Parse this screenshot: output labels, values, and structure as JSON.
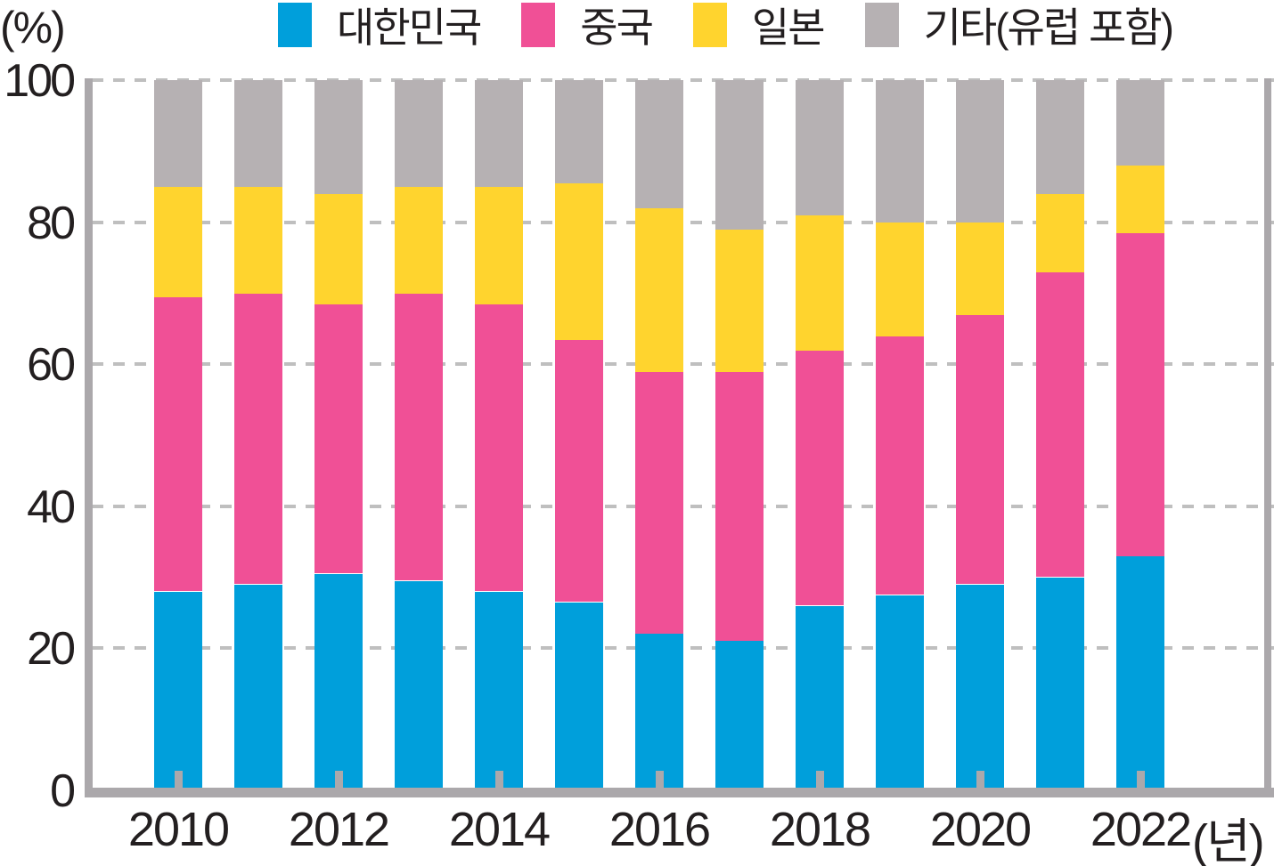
{
  "chart": {
    "y_unit": "(%)",
    "x_unit": "(년)"
  },
  "chart_data": {
    "type": "bar",
    "subtype": "stacked-percent",
    "title": "",
    "xlabel": "(년)",
    "ylabel": "(%)",
    "ylim": [
      0,
      100
    ],
    "yticks": [
      0,
      20,
      40,
      60,
      80,
      100
    ],
    "grid": "dashed-horizontal",
    "legend_position": "top",
    "categories": [
      2010,
      2011,
      2012,
      2013,
      2014,
      2015,
      2016,
      2017,
      2018,
      2019,
      2020,
      2021,
      2022
    ],
    "x_axis_labeled_ticks": [
      2010,
      2012,
      2014,
      2016,
      2018,
      2020,
      2022
    ],
    "series": [
      {
        "key": "korea",
        "name": "대한민국",
        "color": "#009fdb",
        "values": [
          28,
          29,
          30.5,
          29.5,
          28,
          26.5,
          22,
          21,
          26,
          27.5,
          29,
          30,
          33
        ]
      },
      {
        "key": "china",
        "name": "중국",
        "color": "#f05096",
        "values": [
          41.5,
          41,
          38,
          40.5,
          40.5,
          37,
          37,
          38,
          36,
          36.5,
          38,
          43,
          45.5
        ]
      },
      {
        "key": "japan",
        "name": "일본",
        "color": "#ffd42e",
        "values": [
          15.5,
          15,
          15.5,
          15,
          16.5,
          22,
          23,
          20,
          19,
          16,
          13,
          11,
          9.5
        ]
      },
      {
        "key": "others",
        "name": "기타(유럽 포함)",
        "color": "#b6b1b3",
        "values": [
          15,
          15,
          16,
          15,
          15,
          14.5,
          18,
          21,
          19,
          20,
          20,
          16,
          12
        ]
      }
    ],
    "colors": {
      "axis": "#aba8ab",
      "gridline": "#bfbfbf",
      "text": "#231f20",
      "background": "#ffffff"
    }
  }
}
